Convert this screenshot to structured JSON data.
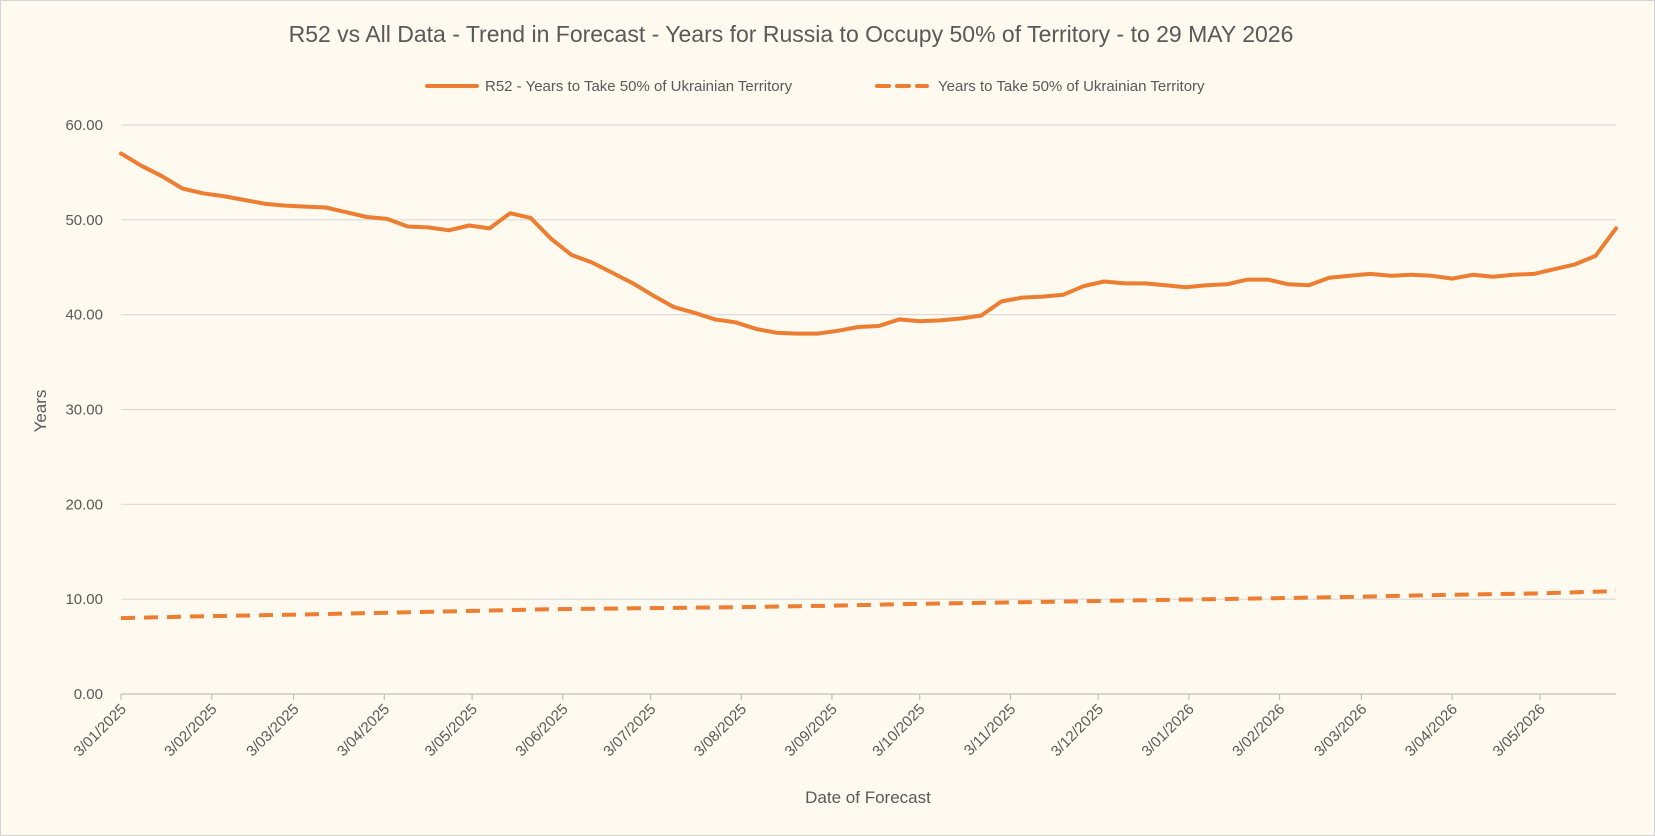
{
  "chart_data": {
    "type": "line",
    "title": "R52 vs All Data  - Trend in Forecast - Years for Russia to Occupy 50% of Territory - to 29 MAY 2026",
    "xlabel": "Date of Forecast",
    "ylabel": "Years",
    "ylim": [
      0,
      60
    ],
    "y_ticks": [
      "0.00",
      "10.00",
      "20.00",
      "30.00",
      "40.00",
      "50.00",
      "60.00"
    ],
    "x_tick_labels": [
      "3/01/2025",
      "3/02/2025",
      "3/03/2025",
      "3/04/2025",
      "3/05/2025",
      "3/06/2025",
      "3/07/2025",
      "3/08/2025",
      "3/09/2025",
      "3/10/2025",
      "3/11/2025",
      "3/12/2025",
      "3/01/2026",
      "3/02/2026",
      "3/03/2026",
      "3/04/2026",
      "3/05/2026"
    ],
    "x_range": [
      "2025-01-03",
      "2026-05-29"
    ],
    "grid": true,
    "legend_position": "top",
    "series": [
      {
        "name": "R52 - Years to Take  50% of Ukrainian Territory",
        "style": "solid",
        "color": "#ed7d31",
        "points": [
          [
            "2025-01-03",
            57.0
          ],
          [
            "2025-01-10",
            55.7
          ],
          [
            "2025-01-17",
            54.6
          ],
          [
            "2025-01-24",
            53.3
          ],
          [
            "2025-01-31",
            52.8
          ],
          [
            "2025-02-07",
            52.5
          ],
          [
            "2025-02-14",
            52.1
          ],
          [
            "2025-02-21",
            51.7
          ],
          [
            "2025-02-28",
            51.5
          ],
          [
            "2025-03-07",
            51.4
          ],
          [
            "2025-03-14",
            51.3
          ],
          [
            "2025-03-21",
            50.8
          ],
          [
            "2025-03-28",
            50.3
          ],
          [
            "2025-04-04",
            50.1
          ],
          [
            "2025-04-11",
            49.3
          ],
          [
            "2025-04-18",
            49.2
          ],
          [
            "2025-04-25",
            48.9
          ],
          [
            "2025-05-02",
            49.4
          ],
          [
            "2025-05-09",
            49.1
          ],
          [
            "2025-05-16",
            50.7
          ],
          [
            "2025-05-23",
            50.2
          ],
          [
            "2025-05-30",
            48.0
          ],
          [
            "2025-06-06",
            46.3
          ],
          [
            "2025-06-13",
            45.5
          ],
          [
            "2025-06-20",
            44.4
          ],
          [
            "2025-06-27",
            43.3
          ],
          [
            "2025-07-04",
            42.0
          ],
          [
            "2025-07-11",
            40.8
          ],
          [
            "2025-07-18",
            40.2
          ],
          [
            "2025-07-25",
            39.5
          ],
          [
            "2025-08-01",
            39.2
          ],
          [
            "2025-08-08",
            38.5
          ],
          [
            "2025-08-15",
            38.1
          ],
          [
            "2025-08-22",
            38.0
          ],
          [
            "2025-08-29",
            38.0
          ],
          [
            "2025-09-05",
            38.3
          ],
          [
            "2025-09-12",
            38.7
          ],
          [
            "2025-09-19",
            38.8
          ],
          [
            "2025-09-26",
            39.5
          ],
          [
            "2025-10-03",
            39.3
          ],
          [
            "2025-10-10",
            39.4
          ],
          [
            "2025-10-17",
            39.6
          ],
          [
            "2025-10-24",
            39.9
          ],
          [
            "2025-10-31",
            41.4
          ],
          [
            "2025-11-07",
            41.8
          ],
          [
            "2025-11-14",
            41.9
          ],
          [
            "2025-11-21",
            42.1
          ],
          [
            "2025-11-28",
            43.0
          ],
          [
            "2025-12-05",
            43.5
          ],
          [
            "2025-12-12",
            43.3
          ],
          [
            "2025-12-19",
            43.3
          ],
          [
            "2025-12-26",
            43.1
          ],
          [
            "2026-01-02",
            42.9
          ],
          [
            "2026-01-09",
            43.1
          ],
          [
            "2026-01-16",
            43.2
          ],
          [
            "2026-01-23",
            43.7
          ],
          [
            "2026-01-30",
            43.7
          ],
          [
            "2026-02-06",
            43.2
          ],
          [
            "2026-02-13",
            43.1
          ],
          [
            "2026-02-20",
            43.9
          ],
          [
            "2026-02-27",
            44.1
          ],
          [
            "2026-03-06",
            44.3
          ],
          [
            "2026-03-13",
            44.1
          ],
          [
            "2026-03-20",
            44.2
          ],
          [
            "2026-03-27",
            44.1
          ],
          [
            "2026-04-03",
            43.8
          ],
          [
            "2026-04-10",
            44.2
          ],
          [
            "2026-04-17",
            44.0
          ],
          [
            "2026-04-24",
            44.2
          ],
          [
            "2026-05-01",
            44.3
          ],
          [
            "2026-05-08",
            44.8
          ],
          [
            "2026-05-15",
            45.3
          ],
          [
            "2026-05-22",
            46.2
          ],
          [
            "2026-05-29",
            49.1
          ]
        ]
      },
      {
        "name": "Years to Take  50% of Ukrainian Territory",
        "style": "dashed",
        "color": "#ed7d31",
        "points": [
          [
            "2025-01-03",
            8.0
          ],
          [
            "2025-02-01",
            8.2
          ],
          [
            "2025-03-01",
            8.35
          ],
          [
            "2025-04-01",
            8.55
          ],
          [
            "2025-05-01",
            8.75
          ],
          [
            "2025-06-01",
            8.95
          ],
          [
            "2025-07-01",
            9.05
          ],
          [
            "2025-08-01",
            9.15
          ],
          [
            "2025-09-01",
            9.3
          ],
          [
            "2025-10-01",
            9.5
          ],
          [
            "2025-11-01",
            9.65
          ],
          [
            "2025-12-01",
            9.8
          ],
          [
            "2026-01-01",
            9.95
          ],
          [
            "2026-02-01",
            10.1
          ],
          [
            "2026-03-01",
            10.25
          ],
          [
            "2026-04-01",
            10.45
          ],
          [
            "2026-05-01",
            10.6
          ],
          [
            "2026-05-29",
            10.85
          ]
        ]
      }
    ]
  }
}
